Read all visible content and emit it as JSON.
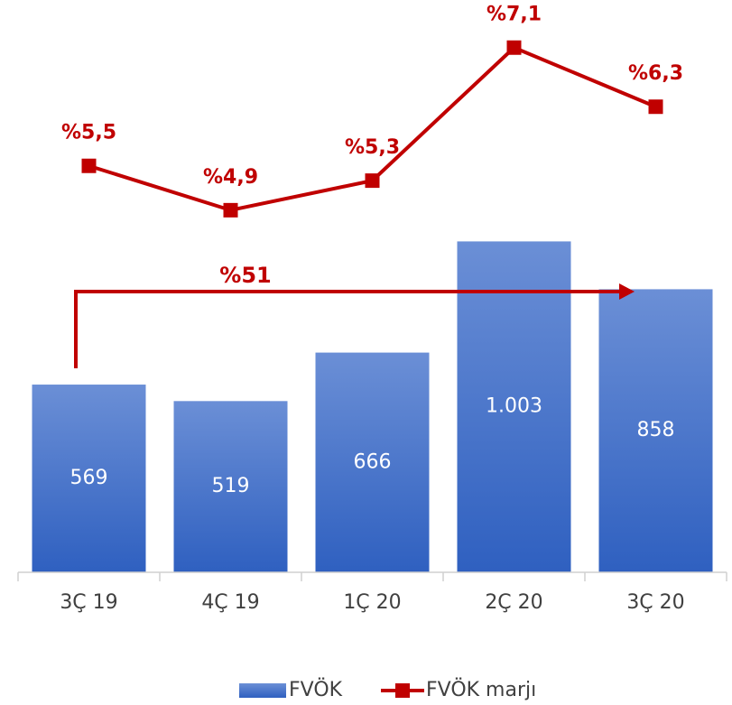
{
  "chart_data": {
    "type": "bar-line",
    "categories": [
      "3Ç 19",
      "4Ç 19",
      "1Ç 20",
      "2Ç 20",
      "3Ç 20"
    ],
    "series": [
      {
        "name": "FVÖK",
        "type": "bar",
        "color": "#4472c4",
        "values": [
          569,
          519,
          666,
          1003,
          858
        ],
        "value_labels": [
          "569",
          "519",
          "666",
          "1.003",
          "858"
        ]
      },
      {
        "name": "FVÖK marjı",
        "type": "line",
        "axis": "y2",
        "color": "#c00000",
        "values": [
          5.5,
          4.9,
          5.3,
          7.1,
          6.3
        ],
        "value_labels": [
          "%5,5",
          "%4,9",
          "%5,3",
          "%7,1",
          "%6,3"
        ]
      }
    ],
    "ylim": [
      0,
      1680
    ],
    "y2lim": [
      0,
      7.5
    ],
    "annotations": [
      {
        "text": "%51"
      }
    ],
    "legend": "bottom"
  }
}
